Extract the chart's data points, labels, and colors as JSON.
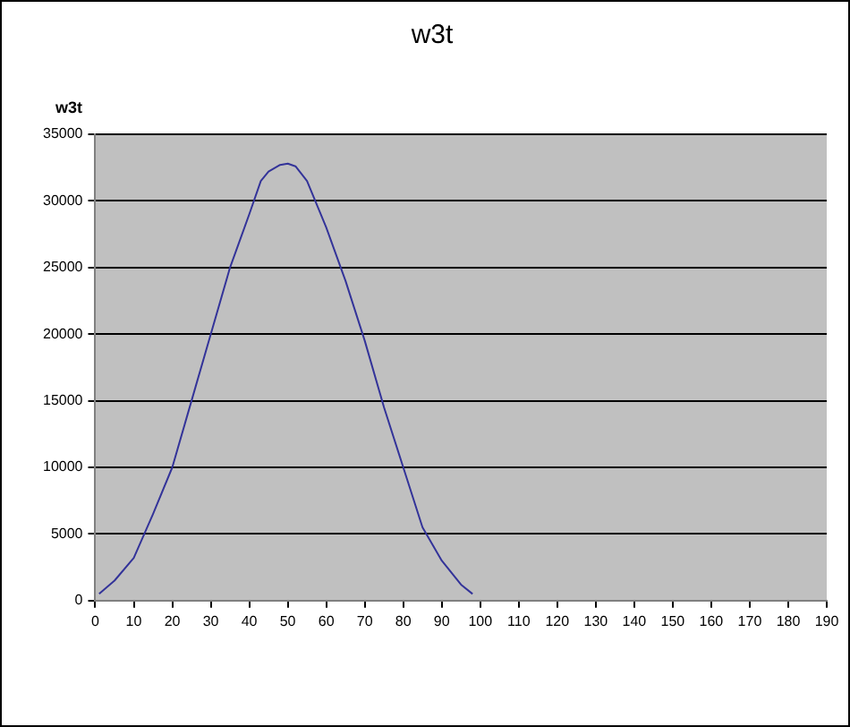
{
  "chart_data": {
    "type": "line",
    "title": "w3t",
    "ylabel": "w3t",
    "x": [
      1,
      5,
      10,
      15,
      20,
      25,
      30,
      35,
      40,
      43,
      45,
      48,
      50,
      52,
      55,
      60,
      65,
      70,
      75,
      80,
      85,
      90,
      95,
      98
    ],
    "series": [
      {
        "color": "#333399",
        "values": [
          500,
          1500,
          3200,
          6500,
          10000,
          15000,
          20000,
          25000,
          29000,
          31500,
          32200,
          32700,
          32800,
          32600,
          31500,
          28000,
          24000,
          19500,
          14500,
          10000,
          5500,
          3000,
          1200,
          500
        ]
      }
    ],
    "xlim": [
      0,
      190
    ],
    "xticks": [
      0,
      10,
      20,
      30,
      40,
      50,
      60,
      70,
      80,
      90,
      100,
      110,
      120,
      130,
      140,
      150,
      160,
      170,
      180,
      190
    ],
    "ylim": [
      0,
      35000
    ],
    "yticks": [
      0,
      5000,
      10000,
      15000,
      20000,
      25000,
      30000,
      35000
    ],
    "grid": "y",
    "legend": false,
    "marker": "none",
    "line_style": "solid"
  }
}
